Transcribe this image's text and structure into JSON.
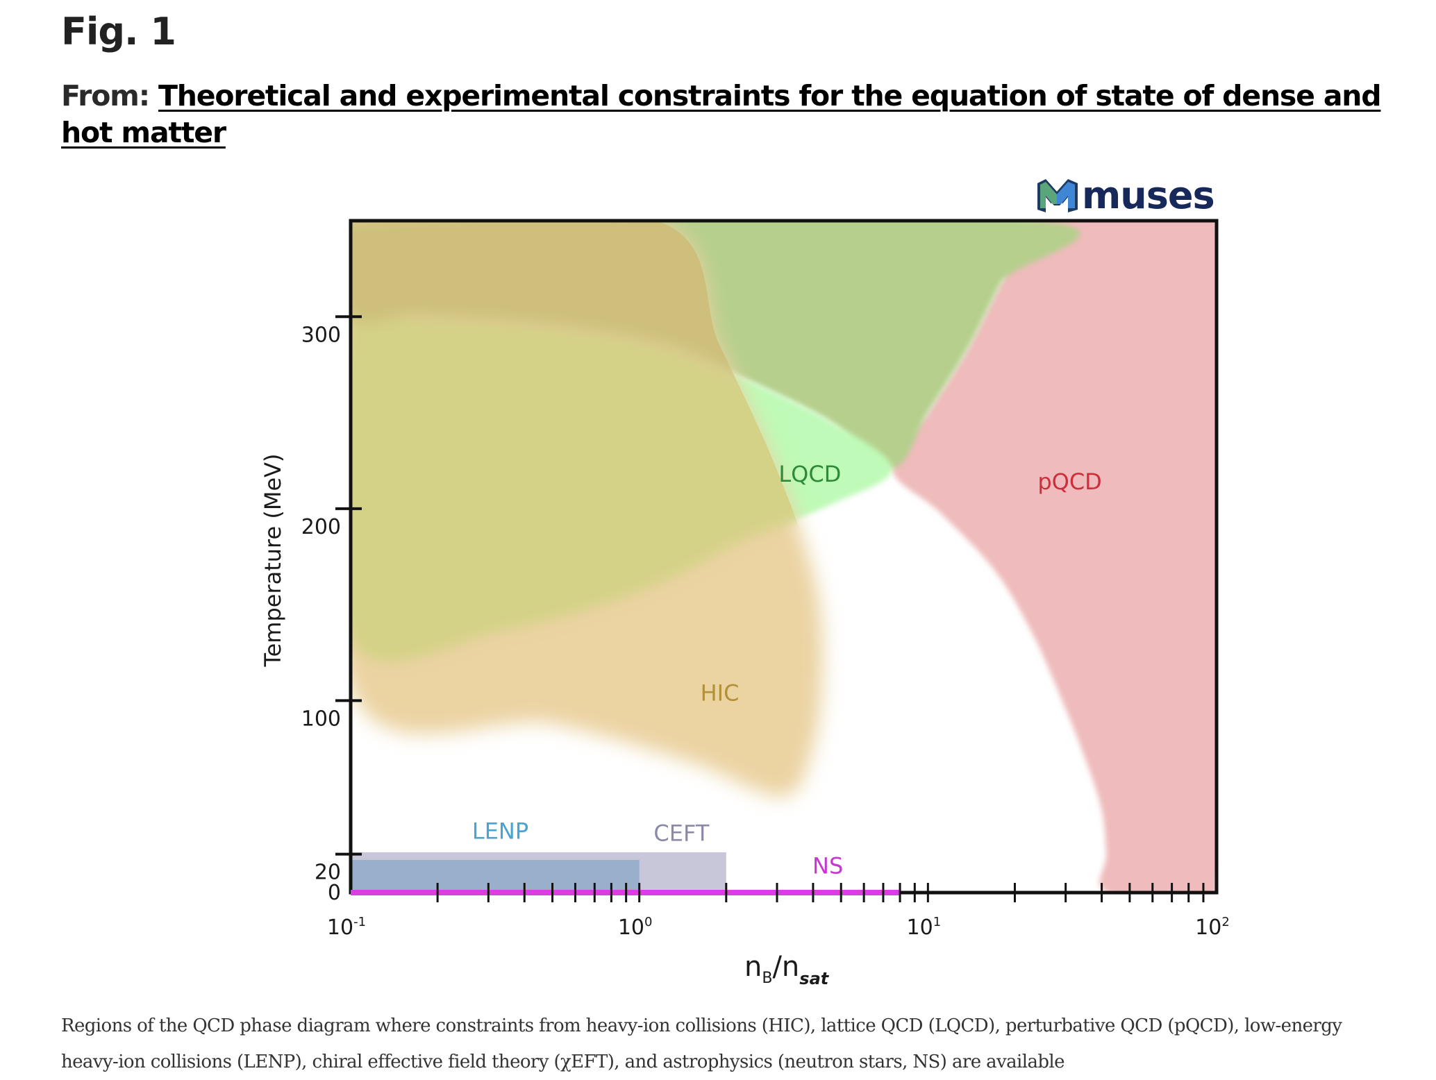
{
  "figure": {
    "label": "Fig. 1",
    "source_prefix": "From:",
    "source_title": "Theoretical and experimental constraints for the equation of state of dense and hot matter",
    "caption": "Regions of the QCD phase diagram where constraints from heavy-ion collisions (HIC), lattice QCD (LQCD), perturbative QCD (pQCD), low-energy heavy-ion collisions (LENP), chiral effective field theory (χEFT), and astrophysics (neutron stars, NS) are available",
    "logo_text": "muses",
    "logo_icon": "muses-m-logo-icon"
  },
  "chart_data": {
    "type": "area",
    "title": "",
    "xlabel": "n_B/n_sat",
    "xlabel_parts": {
      "main": "n",
      "sub1": "B",
      "slash": "/n",
      "sub2": "sat"
    },
    "ylabel": "Temperature (MeV)",
    "xscale": "log",
    "xlim": [
      0.1,
      100
    ],
    "ylim": [
      0,
      350
    ],
    "grid": false,
    "x_ticks_major": [
      {
        "value": 0.1,
        "label": "10",
        "exp": "-1"
      },
      {
        "value": 1,
        "label": "10",
        "exp": "0"
      },
      {
        "value": 10,
        "label": "10",
        "exp": "1"
      },
      {
        "value": 100,
        "label": "10",
        "exp": "2"
      }
    ],
    "x_ticks_minor": [
      0.2,
      0.3,
      0.4,
      0.5,
      0.6,
      0.7,
      0.8,
      0.9,
      1,
      2,
      3,
      4,
      5,
      6,
      7,
      8,
      9,
      10,
      20,
      30,
      40,
      50,
      60,
      70,
      80,
      90
    ],
    "y_ticks": [
      {
        "value": 0,
        "label": "0"
      },
      {
        "value": 20,
        "label": "20"
      },
      {
        "value": 100,
        "label": "100"
      },
      {
        "value": 200,
        "label": "200"
      },
      {
        "value": 300,
        "label": "300"
      }
    ],
    "regions": [
      {
        "name": "HIC",
        "label": "HIC",
        "color": "#ebd3a2",
        "label_color": "#b0913a",
        "label_at": [
          1.9,
          104
        ],
        "boundary": [
          [
            0.1,
            350
          ],
          [
            1.15,
            350
          ],
          [
            1.9,
            285
          ],
          [
            3.0,
            220
          ],
          [
            4.1,
            160
          ],
          [
            4.3,
            110
          ],
          [
            3.9,
            70
          ],
          [
            3.1,
            50
          ],
          [
            1.5,
            68
          ],
          [
            0.5,
            88
          ],
          [
            0.1,
            106
          ]
        ]
      },
      {
        "name": "LQCD",
        "label": "LQCD",
        "color": "#bffab8",
        "label_color": "#2e8a3a",
        "label_at": [
          3.9,
          218
        ],
        "boundary": [
          [
            0.1,
            300
          ],
          [
            0.17,
            300
          ],
          [
            0.5,
            295
          ],
          [
            1.2,
            285
          ],
          [
            2.2,
            269
          ],
          [
            4.5,
            246
          ],
          [
            7.5,
            221
          ],
          [
            4.6,
            202
          ],
          [
            2.27,
            183
          ],
          [
            1.05,
            158
          ],
          [
            0.35,
            137
          ],
          [
            0.1,
            132
          ]
        ]
      },
      {
        "name": "LQCD-upper",
        "label": "",
        "color": "#b6cf8d",
        "label_color": "",
        "label_at": null,
        "boundary": [
          [
            0.1,
            350
          ],
          [
            24,
            350
          ],
          [
            18,
            318
          ],
          [
            13.7,
            283
          ],
          [
            10,
            250
          ],
          [
            7.5,
            221
          ],
          [
            4.5,
            246
          ],
          [
            2.2,
            269
          ],
          [
            1.2,
            285
          ],
          [
            0.5,
            295
          ],
          [
            0.17,
            300
          ],
          [
            0.1,
            300
          ]
        ]
      },
      {
        "name": "pQCD",
        "label": "pQCD",
        "color": "#efbbbc",
        "label_color": "#cc2f3a",
        "label_at": [
          31,
          214
        ],
        "boundary": [
          [
            24,
            350
          ],
          [
            18,
            318
          ],
          [
            13.7,
            283
          ],
          [
            10,
            250
          ],
          [
            7.5,
            221
          ],
          [
            11,
            198
          ],
          [
            17,
            168
          ],
          [
            23,
            135
          ],
          [
            29,
            101
          ],
          [
            35,
            70
          ],
          [
            40,
            43
          ],
          [
            41.5,
            20
          ],
          [
            42,
            0
          ],
          [
            100,
            0
          ],
          [
            100,
            350
          ]
        ]
      }
    ],
    "overlaps": [
      {
        "of": [
          "HIC",
          "LQCD"
        ],
        "color": "#d4d287"
      },
      {
        "of": [
          "HIC",
          "LQCD-upper"
        ],
        "color": "#cec07c"
      }
    ],
    "bands": [
      {
        "name": "CEFT",
        "label": "CEFT",
        "x": [
          0.1,
          2.0
        ],
        "y": [
          0,
          21
        ],
        "color": "#c8c7d9",
        "label_color": "#8a8aa8",
        "label_at": [
          1.4,
          31
        ]
      },
      {
        "name": "LENP",
        "label": "LENP",
        "x": [
          0.1,
          1.0
        ],
        "y": [
          0,
          17
        ],
        "color": "#9aafcc",
        "label_color": "#4aa3d0",
        "label_at": [
          0.33,
          32
        ]
      }
    ],
    "lines": [
      {
        "name": "NS",
        "label": "NS",
        "x": [
          0.1,
          8
        ],
        "y": [
          0,
          0
        ],
        "color": "#d93ee6",
        "label_color": "#c936cf",
        "label_at": [
          4.5,
          14
        ]
      }
    ],
    "intersection_point": [
      7.5,
      221
    ]
  }
}
